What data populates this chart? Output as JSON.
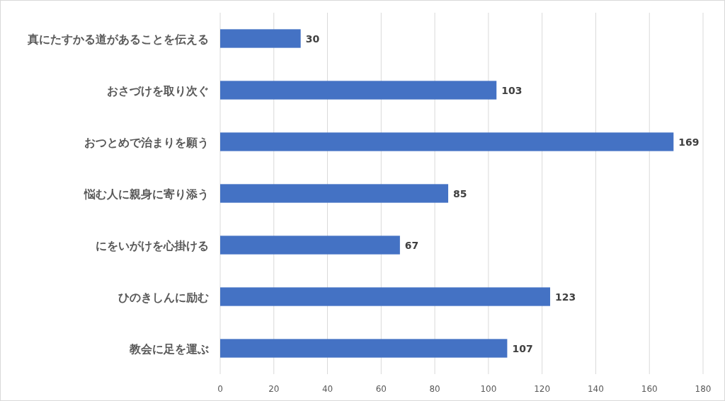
{
  "chart_data": {
    "type": "bar",
    "orientation": "horizontal",
    "categories": [
      "真にたすかる道があることを伝える",
      "おさづけを取り次ぐ",
      "おつとめで治まりを願う",
      "悩む人に親身に寄り添う",
      "にをいがけを心掛ける",
      "ひのきしんに励む",
      "教会に足を運ぶ"
    ],
    "values": [
      30,
      103,
      169,
      85,
      67,
      123,
      107
    ],
    "color": "#4472c4",
    "xlim": [
      0,
      180
    ],
    "xticks": [
      0,
      20,
      40,
      60,
      80,
      100,
      120,
      140,
      160,
      180
    ],
    "grid": "x",
    "data_labels": true
  }
}
